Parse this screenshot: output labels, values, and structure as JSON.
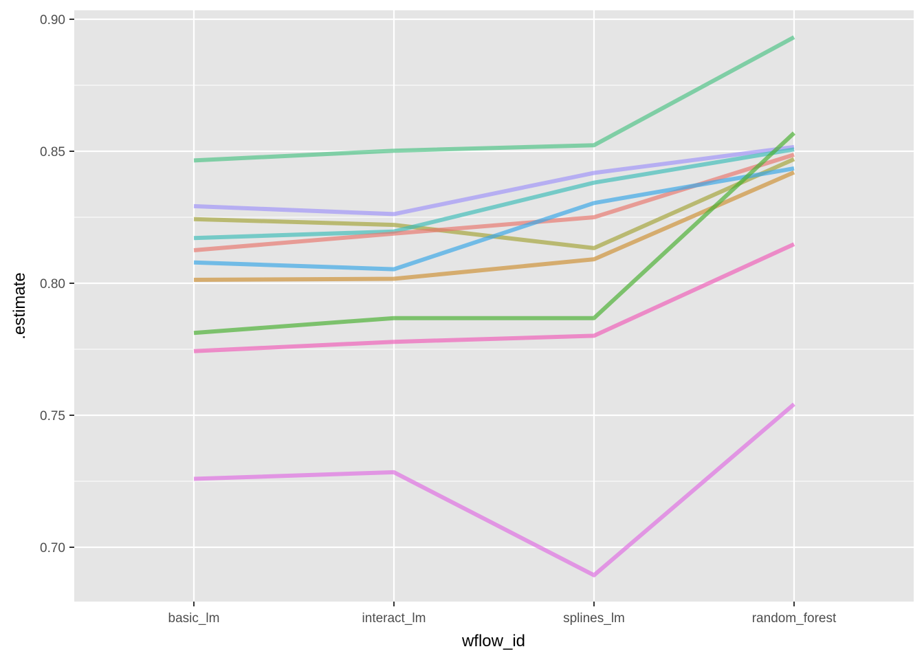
{
  "chart_data": {
    "type": "line",
    "title": "",
    "xlabel": "wflow_id",
    "ylabel": ".estimate",
    "categories": [
      "basic_lm",
      "interact_lm",
      "splines_lm",
      "random_forest"
    ],
    "ylim": [
      0.68,
      0.904
    ],
    "y_ticks": [
      0.7,
      0.75,
      0.8,
      0.85,
      0.9
    ],
    "y_tick_labels": [
      "0.70",
      "0.75",
      "0.80",
      "0.85",
      "0.90"
    ],
    "y_minor_ticks": [
      0.725,
      0.775,
      0.825,
      0.875
    ],
    "grid": true,
    "legend": "none",
    "background_color": "#e5e5e5",
    "grid_color": "#ffffff",
    "series": [
      {
        "values": [
          0.8465,
          0.8502,
          0.8523,
          0.8932
        ],
        "color": "#4ec386"
      },
      {
        "values": [
          0.8292,
          0.8262,
          0.8418,
          0.8516
        ],
        "color": "#9f94f8"
      },
      {
        "values": [
          0.8243,
          0.8221,
          0.8133,
          0.847
        ],
        "color": "#a4a33a"
      },
      {
        "values": [
          0.8171,
          0.8196,
          0.8381,
          0.8507
        ],
        "color": "#3fbdb8"
      },
      {
        "values": [
          0.8125,
          0.8188,
          0.825,
          0.8487
        ],
        "color": "#e8776f"
      },
      {
        "values": [
          0.8079,
          0.8053,
          0.8304,
          0.8435
        ],
        "color": "#3aa6e6"
      },
      {
        "values": [
          0.8013,
          0.8017,
          0.8091,
          0.842
        ],
        "color": "#cd9035"
      },
      {
        "values": [
          0.7812,
          0.7868,
          0.7868,
          0.8569
        ],
        "color": "#4aaf32"
      },
      {
        "values": [
          0.7743,
          0.7778,
          0.7801,
          0.8148
        ],
        "color": "#ef5fb8"
      },
      {
        "values": [
          0.7259,
          0.7284,
          0.6894,
          0.7542
        ],
        "color": "#df6ee2"
      }
    ]
  }
}
